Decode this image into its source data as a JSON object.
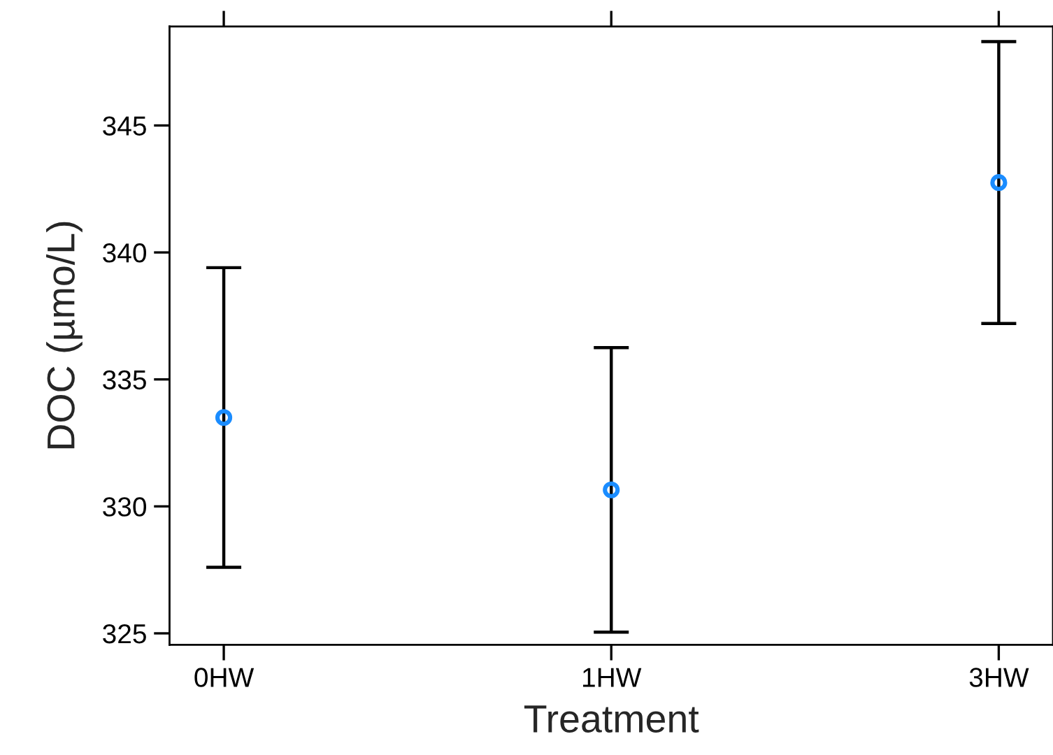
{
  "chart_data": {
    "type": "scatter",
    "xlabel": "Treatment",
    "ylabel": "DOC (µmo/L)",
    "categories": [
      "0HW",
      "1HW",
      "3HW"
    ],
    "series": [
      {
        "color": "#1a8cff",
        "values": [
          333.5,
          330.65,
          342.75
        ],
        "errors": [
          5.9,
          5.6,
          5.55
        ]
      }
    ],
    "ylim": [
      324.55,
      348.9
    ],
    "yticks": [
      325,
      330,
      335,
      340,
      345
    ],
    "marker": "circle",
    "grid": false
  }
}
